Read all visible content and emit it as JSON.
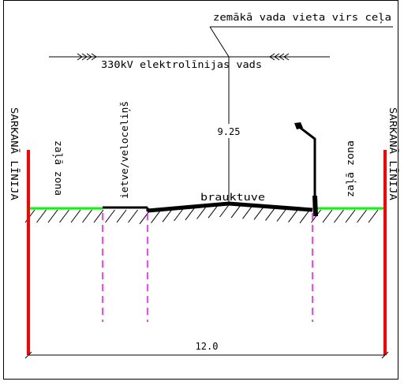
{
  "labels": {
    "low_wire_point": "zemākā vada vieta virs ceļa",
    "power_line": "330kV elektrolīnijas vads",
    "clearance": "9.25",
    "red_line_left": "SARKANĀ LĪNIJA",
    "red_line_right": "SARKANĀ LĪNIJA",
    "green_zone_left": "zaļā zona",
    "green_zone_right": "zaļā zona",
    "sidewalk": "ietve/veloceliņš",
    "carriageway": "brauktuve",
    "width": "12.0"
  },
  "colors": {
    "red_line": "#ff0000",
    "green_zone": "#00ff00",
    "utility_dash": "#ff00ff",
    "ink": "#000000"
  },
  "icons": {
    "lamp": "street-lamp-icon",
    "wire_arrows": "chevron-arrows"
  }
}
